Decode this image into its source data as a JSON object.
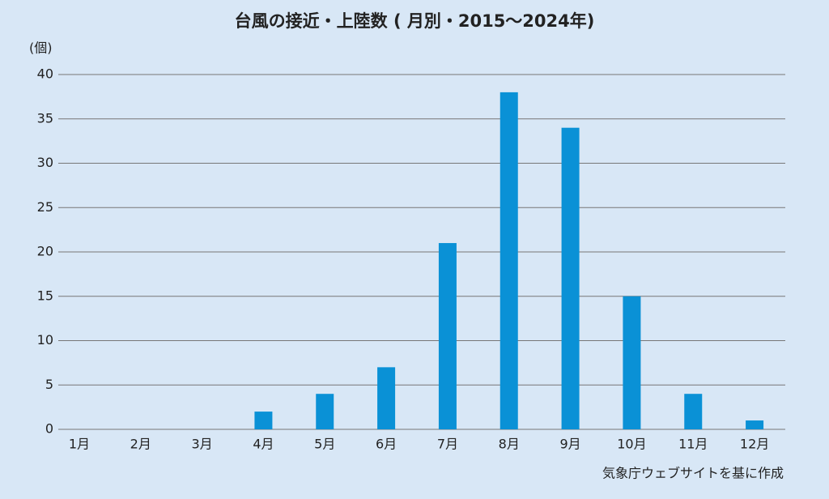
{
  "chart_data": {
    "type": "bar",
    "title": "台風の接近・上陸数 ( 月別・2015～2024年)",
    "y_unit": "(個)",
    "source": "気象庁ウェブサイトを基に作成",
    "categories": [
      "1月",
      "2月",
      "3月",
      "4月",
      "5月",
      "6月",
      "7月",
      "8月",
      "9月",
      "10月",
      "11月",
      "12月"
    ],
    "values": [
      0,
      0,
      0,
      2,
      4,
      7,
      21,
      38,
      34,
      15,
      4,
      1
    ],
    "color": "#0a91d6",
    "ylim": [
      0,
      40
    ],
    "yticks": [
      0,
      5,
      10,
      15,
      20,
      25,
      30,
      35,
      40
    ],
    "grid": true
  }
}
